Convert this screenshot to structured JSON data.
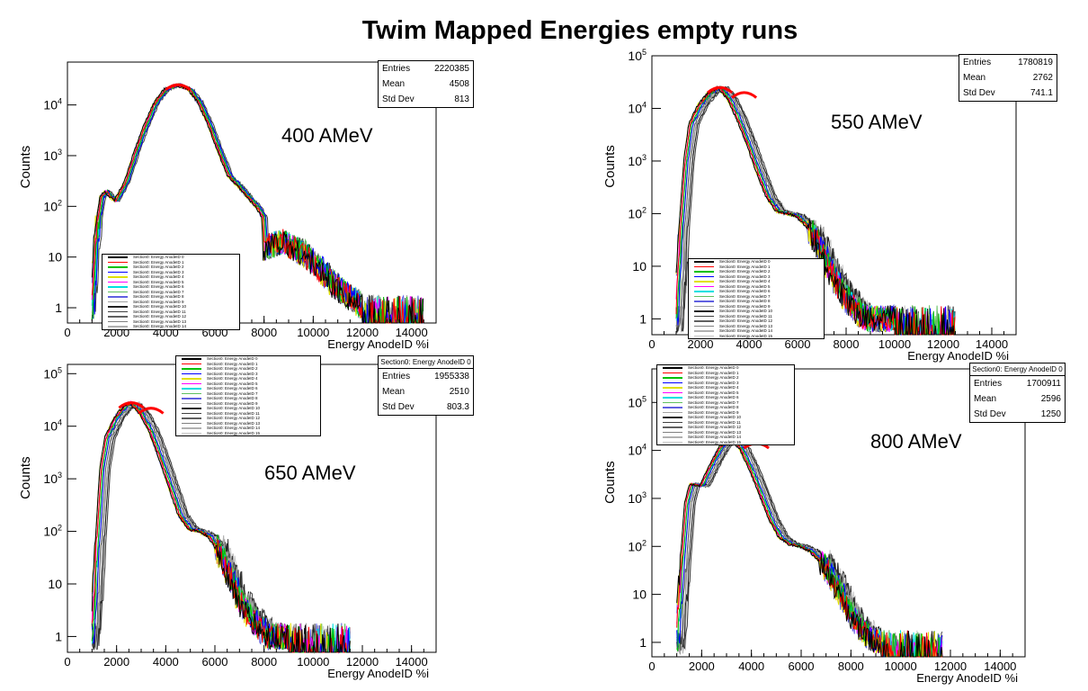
{
  "title": "Twim Mapped Energies empty runs",
  "colors": [
    "#000000",
    "#ff0000",
    "#00c000",
    "#0000ff",
    "#e0e000",
    "#ff00ff",
    "#00e0e0",
    "#60c060",
    "#6060e0",
    "#a0a0a0",
    "#202020",
    "#404040",
    "#606060",
    "#808080",
    "#b0b0b0",
    "#c8c8c8"
  ],
  "chart_data": [
    {
      "type": "line",
      "energy_label": "400 AMeV",
      "xlabel": "Energy AnodeID %i",
      "ylabel": "Counts",
      "xlim": [
        0,
        15000
      ],
      "ylog": true,
      "ylim": [
        0.5,
        70000
      ],
      "xticks": [
        "0",
        "2000",
        "4000",
        "6000",
        "8000",
        "10000",
        "12000",
        "14000"
      ],
      "yticks": [
        "1",
        "10",
        "10^2",
        "10^3",
        "10^4"
      ],
      "stats": {
        "header": "",
        "rows": [
          [
            "Entries",
            "2220385"
          ],
          [
            "Mean",
            "4508"
          ],
          [
            "Std Dev",
            "813"
          ]
        ]
      },
      "legend": [
        "Section0: Energy AnodeID 0",
        "Section0: Energy AnodeID 1",
        "Section0: Energy AnodeID 2",
        "Section0: Energy AnodeID 3",
        "Section0: Energy AnodeID 4",
        "Section0: Energy AnodeID 5",
        "Section0: Energy AnodeID 6",
        "Section0: Energy AnodeID 7",
        "Section0: Energy AnodeID 8",
        "Section0: Energy AnodeID 9",
        "Section0: Energy AnodeID 10",
        "Section0: Energy AnodeID 11",
        "Section0: Energy AnodeID 12",
        "Section0: Energy AnodeID 13",
        "Section0: Energy AnodeID 14"
      ],
      "peaks": [
        [
          4500,
          25000
        ]
      ],
      "curve_x": [
        1000,
        1200,
        1400,
        1600,
        1800,
        2000,
        2400,
        2800,
        3200,
        3600,
        4000,
        4500,
        5000,
        5400,
        5800,
        6200,
        6600,
        7000,
        7400,
        7800,
        8000,
        8050,
        8400,
        8800,
        9200,
        9600,
        10000,
        10400,
        10800,
        11200,
        11600,
        12000
      ],
      "curve_y": [
        1,
        30,
        150,
        200,
        150,
        130,
        300,
        1200,
        4000,
        11000,
        20000,
        25000,
        20000,
        11000,
        4000,
        1200,
        400,
        250,
        150,
        90,
        60,
        15,
        18,
        20,
        15,
        12,
        8,
        5,
        3,
        2,
        1.5,
        1
      ]
    },
    {
      "type": "line",
      "energy_label": "550 AMeV",
      "xlabel": "Energy AnodeID %i",
      "ylabel": "Counts",
      "xlim": [
        0,
        15000
      ],
      "ylog": true,
      "ylim": [
        0.5,
        100000
      ],
      "xticks": [
        "0",
        "2000",
        "4000",
        "6000",
        "8000",
        "10000",
        "12000",
        "14000"
      ],
      "yticks": [
        "1",
        "10",
        "10^2",
        "10^3",
        "10^4",
        "10^5"
      ],
      "stats": {
        "header": "",
        "rows": [
          [
            "Entries",
            "1780819"
          ],
          [
            "Mean",
            "2762"
          ],
          [
            "Std Dev",
            "741.1"
          ]
        ]
      },
      "legend": [
        "Section0: Energy AnodeID 0",
        "Section0: Energy AnodeID 1",
        "Section0: Energy AnodeID 2",
        "Section0: Energy AnodeID 3",
        "Section0: Energy AnodeID 4",
        "Section0: Energy AnodeID 5",
        "Section0: Energy AnodeID 6",
        "Section0: Energy AnodeID 7",
        "Section0: Energy AnodeID 8",
        "Section0: Energy AnodeID 9",
        "Section0: Energy AnodeID 10",
        "Section0: Energy AnodeID 11",
        "Section0: Energy AnodeID 12",
        "Section0: Energy AnodeID 13",
        "Section0: Energy AnodeID 14",
        "Section0: Energy AnodeID 15"
      ],
      "peaks": [
        [
          2800,
          25000
        ],
        [
          3800,
          20000
        ]
      ],
      "curve_x": [
        1000,
        1200,
        1400,
        1600,
        2000,
        2400,
        2800,
        3200,
        3600,
        4000,
        4400,
        4800,
        5200,
        5600,
        6000,
        6400,
        6800,
        7200,
        7600,
        8000,
        8400,
        8800,
        9200,
        9600,
        10000
      ],
      "curve_y": [
        1,
        50,
        1000,
        5000,
        12000,
        20000,
        25000,
        15000,
        6000,
        2000,
        600,
        200,
        110,
        100,
        90,
        60,
        30,
        12,
        5,
        2.5,
        1.5,
        1,
        1,
        1,
        1
      ]
    },
    {
      "type": "line",
      "energy_label": "650 AMeV",
      "xlabel": "Energy AnodeID %i",
      "ylabel": "Counts",
      "xlim": [
        0,
        15000
      ],
      "ylog": true,
      "ylim": [
        0.5,
        150000
      ],
      "xticks": [
        "0",
        "2000",
        "4000",
        "6000",
        "8000",
        "10000",
        "12000",
        "14000"
      ],
      "yticks": [
        "1",
        "10",
        "10^2",
        "10^3",
        "10^4",
        "10^5"
      ],
      "stats": {
        "header": "Section0: Energy AnodeID 0",
        "rows": [
          [
            "Entries",
            "1955338"
          ],
          [
            "Mean",
            "2510"
          ],
          [
            "Std Dev",
            "803.3"
          ]
        ]
      },
      "legend": [
        "Section0: Energy AnodeID 0",
        "Section0: Energy AnodeID 1",
        "Section0: Energy AnodeID 2",
        "Section0: Energy AnodeID 3",
        "Section0: Energy AnodeID 4",
        "Section0: Energy AnodeID 5",
        "Section0: Energy AnodeID 6",
        "Section0: Energy AnodeID 7",
        "Section0: Energy AnodeID 8",
        "Section0: Energy AnodeID 9",
        "Section0: Energy AnodeID 10",
        "Section0: Energy AnodeID 11",
        "Section0: Energy AnodeID 12",
        "Section0: Energy AnodeID 13",
        "Section0: Energy AnodeID 14",
        "Section0: Energy AnodeID 15"
      ],
      "peaks": [
        [
          2600,
          28000
        ],
        [
          3400,
          22000
        ]
      ],
      "curve_x": [
        1000,
        1200,
        1400,
        1600,
        2000,
        2400,
        2600,
        3000,
        3400,
        3800,
        4200,
        4600,
        5000,
        5400,
        5800,
        6200,
        6600,
        7000,
        7400,
        7800,
        8200,
        8600,
        9000
      ],
      "curve_y": [
        1,
        40,
        1500,
        6000,
        15000,
        25000,
        28000,
        18000,
        8000,
        2500,
        700,
        200,
        110,
        100,
        80,
        40,
        15,
        5,
        2.5,
        1.5,
        1,
        1,
        1
      ]
    },
    {
      "type": "line",
      "energy_label": "800 AMeV",
      "xlabel": "Energy AnodeID %i",
      "ylabel": "Counts",
      "xlim": [
        0,
        15000
      ],
      "ylog": true,
      "ylim": [
        0.5,
        500000
      ],
      "xticks": [
        "0",
        "2000",
        "4000",
        "6000",
        "8000",
        "10000",
        "12000",
        "14000"
      ],
      "yticks": [
        "1",
        "10",
        "10^2",
        "10^3",
        "10^4",
        "10^5"
      ],
      "stats": {
        "header": "Section0: Energy AnodeID 0",
        "rows": [
          [
            "Entries",
            "1700911"
          ],
          [
            "Mean",
            "2596"
          ],
          [
            "Std Dev",
            "1250"
          ]
        ]
      },
      "legend": [
        "Section0: Energy AnodeID 0",
        "Section0: Energy AnodeID 1",
        "Section0: Energy AnodeID 2",
        "Section0: Energy AnodeID 3",
        "Section0: Energy AnodeID 4",
        "Section0: Energy AnodeID 5",
        "Section0: Energy AnodeID 6",
        "Section0: Energy AnodeID 7",
        "Section0: Energy AnodeID 8",
        "Section0: Energy AnodeID 9",
        "Section0: Energy AnodeID 10",
        "Section0: Energy AnodeID 11",
        "Section0: Energy AnodeID 12",
        "Section0: Energy AnodeID 13",
        "Section0: Energy AnodeID 14",
        "Section0: Energy AnodeID 15"
      ],
      "peaks": [
        [
          3200,
          18000
        ],
        [
          4200,
          14000
        ]
      ],
      "curve_x": [
        1000,
        1200,
        1400,
        1600,
        2000,
        2400,
        2800,
        3200,
        3600,
        4000,
        4400,
        4800,
        5200,
        5600,
        6000,
        6400,
        6800,
        7200,
        7600,
        8000,
        8400,
        8800,
        9200
      ],
      "curve_y": [
        1,
        30,
        800,
        2000,
        1800,
        5000,
        12000,
        18000,
        11000,
        4000,
        1200,
        350,
        150,
        110,
        100,
        80,
        50,
        25,
        10,
        4,
        2,
        1.2,
        1
      ]
    }
  ]
}
